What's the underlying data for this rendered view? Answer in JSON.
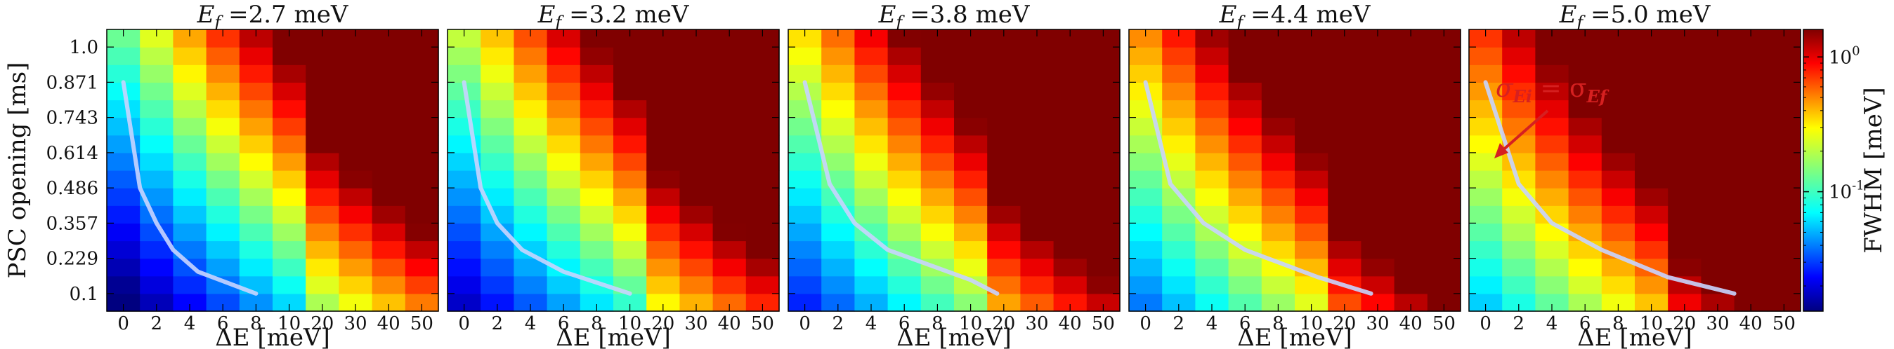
{
  "chart_data": {
    "type": "heatmap",
    "panels": [
      {
        "title": "Ef =2.7 meV",
        "ef": 2.7
      },
      {
        "title": "Ef =3.2 meV",
        "ef": 3.2
      },
      {
        "title": "Ef =3.8 meV",
        "ef": 3.8
      },
      {
        "title": "Ef =4.4 meV",
        "ef": 4.4
      },
      {
        "title": "Ef =5.0 meV",
        "ef": 5.0
      }
    ],
    "xlabel": "ΔE [meV]",
    "ylabel": "PSC opening [ms]",
    "x_ticks": [
      "0",
      "2",
      "4",
      "6",
      "8",
      "10",
      "20",
      "30",
      "40",
      "50"
    ],
    "y_ticks": [
      "0.1",
      "0.229",
      "0.357",
      "0.486",
      "0.614",
      "0.743",
      "0.871",
      "1.0"
    ],
    "y_values": [
      0.1,
      0.229,
      0.357,
      0.486,
      0.614,
      0.743,
      0.871,
      1.0
    ],
    "colorbar": {
      "label": "FWHM [meV]",
      "scale": "log",
      "range": [
        0.013,
        1.6
      ],
      "tick_labels": [
        "10^0",
        "10^-1"
      ],
      "tick_values": [
        1.0,
        0.1
      ]
    },
    "equal_resolution_curve": {
      "description_label": "σEi = σEf",
      "points_panel_1": [
        [
          0,
          0.871
        ],
        [
          1,
          0.486
        ],
        [
          2,
          0.357
        ],
        [
          3,
          0.26
        ],
        [
          4.5,
          0.18
        ],
        [
          8,
          0.1
        ]
      ],
      "points_panel_2": [
        [
          0,
          0.871
        ],
        [
          1,
          0.486
        ],
        [
          2,
          0.357
        ],
        [
          3.5,
          0.26
        ],
        [
          6,
          0.18
        ],
        [
          10,
          0.1
        ]
      ],
      "points_panel_3": [
        [
          0,
          0.871
        ],
        [
          1.5,
          0.5
        ],
        [
          3,
          0.357
        ],
        [
          5,
          0.26
        ],
        [
          10,
          0.15
        ],
        [
          18,
          0.1
        ]
      ],
      "points_panel_4": [
        [
          0,
          0.871
        ],
        [
          1.5,
          0.5
        ],
        [
          3.5,
          0.357
        ],
        [
          6,
          0.26
        ],
        [
          12,
          0.16
        ],
        [
          28,
          0.1
        ]
      ],
      "points_panel_5": [
        [
          0,
          0.871
        ],
        [
          2,
          0.5
        ],
        [
          4,
          0.357
        ],
        [
          7,
          0.26
        ],
        [
          15,
          0.16
        ],
        [
          35,
          0.1
        ]
      ]
    },
    "annotation": {
      "panel": 5,
      "label_main": "σ",
      "label_sub": "Ei",
      "label_eq": " = σ",
      "label_sub2": "Ef",
      "color": "#d62020"
    },
    "colormap": "jet"
  }
}
